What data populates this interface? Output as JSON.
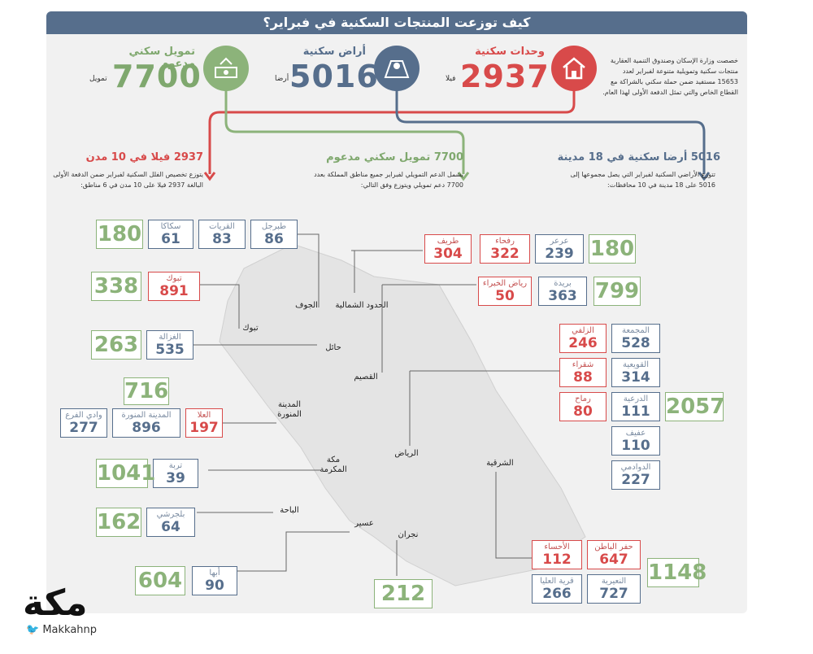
{
  "title": "كيف توزعت المنتجات السكنية في فبراير؟",
  "intro": "خصصت وزارة الإسكان وصندوق التنمية العقارية منتجات سكنية وتمويلية متنوعة لفبراير لعدد 15653 مستفيد ضمن حملة سكني بالشراكة مع القطاع الخاص والتي تمثل الدفعة الأولى لهذا العام.",
  "stats": [
    {
      "label": "وحدات سكنية",
      "value": "2937",
      "unit": "فيلا",
      "color": "#d84a4a",
      "icon": "house-icon"
    },
    {
      "label": "أراض سكنية",
      "value": "5016",
      "unit": "أرضا",
      "color": "#566e8c",
      "icon": "map-pin-icon"
    },
    {
      "label": "تمويل سكني مدعوم",
      "value": "7700",
      "unit": "تمويل",
      "color": "#8cb37a",
      "icon": "money-icon"
    }
  ],
  "sections": [
    {
      "heading": "5016 أرضا سكنية في 18 مدينة",
      "text": "تتوزع الأراضي السكنية لفبراير التي يصل مجموعها إلى 5016 على 18 مدينة في 10 محافظات:",
      "color": "#566e8c"
    },
    {
      "heading": "7700 تمويل سكني مدعوم",
      "text": "يشمل الدعم التمويلي لفبراير جميع مناطق المملكة بعدد 7700 دعم تمويلي ويتوزع وفق التالي:",
      "color": "#8cb37a"
    },
    {
      "heading": "2937 فيلا في 10 مدن",
      "text": "يتوزع تخصيص الفلل السكنية لفبراير ضمن الدفعة الأولى البالغة 2937 فيلا على 10 مدن في 6 مناطق:",
      "color": "#d84a4a"
    }
  ],
  "regions": [
    "الجوف",
    "الحدود الشمالية",
    "تبوك",
    "حائل",
    "القصيم",
    "المدينة المنورة",
    "مكة المكرمة",
    "الرياض",
    "الباحة",
    "عسير",
    "نجران",
    "الشرقية"
  ],
  "boxes": [
    {
      "name": "طبرجل",
      "value": "86",
      "type": "blue"
    },
    {
      "name": "القريات",
      "value": "83",
      "type": "blue"
    },
    {
      "name": "سكاكا",
      "value": "61",
      "type": "blue"
    },
    {
      "name": "طريف",
      "value": "304",
      "type": "red"
    },
    {
      "name": "رفحاء",
      "value": "322",
      "type": "red"
    },
    {
      "name": "عرعر",
      "value": "239",
      "type": "blue"
    },
    {
      "name": "تبوك",
      "value": "891",
      "type": "red"
    },
    {
      "name": "رياض الخبراء",
      "value": "50",
      "type": "red"
    },
    {
      "name": "بريدة",
      "value": "363",
      "type": "blue"
    },
    {
      "name": "الغزالة",
      "value": "535",
      "type": "blue"
    },
    {
      "name": "الزلفي",
      "value": "246",
      "type": "red"
    },
    {
      "name": "المجمعة",
      "value": "528",
      "type": "blue"
    },
    {
      "name": "شقراء",
      "value": "88",
      "type": "red"
    },
    {
      "name": "القويعية",
      "value": "314",
      "type": "blue"
    },
    {
      "name": "رماح",
      "value": "80",
      "type": "red"
    },
    {
      "name": "الدرعية",
      "value": "111",
      "type": "blue"
    },
    {
      "name": "عفيف",
      "value": "110",
      "type": "blue"
    },
    {
      "name": "الدوادمي",
      "value": "227",
      "type": "blue"
    },
    {
      "name": "وادي الفرع",
      "value": "277",
      "type": "blue"
    },
    {
      "name": "المدينة المنورة",
      "value": "896",
      "type": "blue"
    },
    {
      "name": "العلا",
      "value": "197",
      "type": "red"
    },
    {
      "name": "تربة",
      "value": "39",
      "type": "blue"
    },
    {
      "name": "بلجرشي",
      "value": "64",
      "type": "blue"
    },
    {
      "name": "أبها",
      "value": "90",
      "type": "blue"
    },
    {
      "name": "الأحساء",
      "value": "112",
      "type": "red"
    },
    {
      "name": "حفر الباطن",
      "value": "647",
      "type": "red"
    },
    {
      "name": "قرية العليا",
      "value": "266",
      "type": "blue"
    },
    {
      "name": "النعيرية",
      "value": "727",
      "type": "blue"
    }
  ],
  "totals": [
    "180",
    "180",
    "338",
    "799",
    "263",
    "716",
    "2057",
    "1041",
    "162",
    "604",
    "212",
    "1148"
  ],
  "brand": {
    "logo": "مكة",
    "handle": "Makkahnp"
  }
}
